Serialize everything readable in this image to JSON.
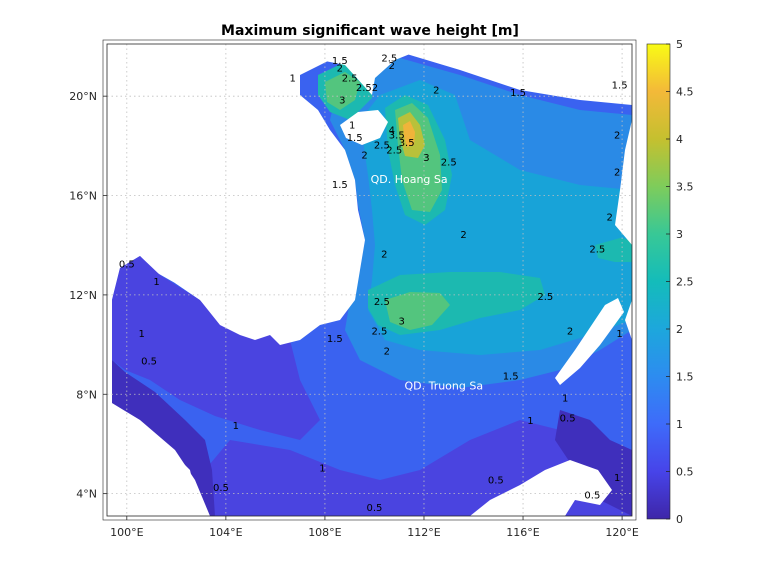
{
  "title": "Maximum significant wave height [m]",
  "map": {
    "x_ticks": [
      "100°E",
      "104°E",
      "108°E",
      "112°E",
      "116°E",
      "120°E"
    ],
    "y_ticks": [
      "20°N",
      "16°N",
      "12°N",
      "8°N",
      "4°N"
    ],
    "lon_range": [
      99.2,
      120.4
    ],
    "lat_range": [
      3.1,
      22.1
    ],
    "places": [
      {
        "name": "QD. Hoang Sa",
        "lon": 111.4,
        "lat": 16.5
      },
      {
        "name": "QD. Truong Sa",
        "lon": 112.8,
        "lat": 8.2
      }
    ],
    "contour_labels": [
      {
        "text": "1.5",
        "lon": 108.6,
        "lat": 21.3
      },
      {
        "text": "2",
        "lon": 108.6,
        "lat": 21.0
      },
      {
        "text": "2.5",
        "lon": 109.0,
        "lat": 20.6
      },
      {
        "text": "2.52",
        "lon": 109.7,
        "lat": 20.2
      },
      {
        "text": "3",
        "lon": 108.7,
        "lat": 19.7
      },
      {
        "text": "2.5",
        "lon": 110.6,
        "lat": 21.4
      },
      {
        "text": "2",
        "lon": 110.7,
        "lat": 21.1
      },
      {
        "text": "1",
        "lon": 106.7,
        "lat": 20.6
      },
      {
        "text": "2",
        "lon": 112.5,
        "lat": 20.1
      },
      {
        "text": "1.5",
        "lon": 115.8,
        "lat": 20.0
      },
      {
        "text": "1.5",
        "lon": 119.9,
        "lat": 20.3
      },
      {
        "text": "1",
        "lon": 109.1,
        "lat": 18.7
      },
      {
        "text": "1.5",
        "lon": 109.2,
        "lat": 18.2
      },
      {
        "text": "3.5",
        "lon": 110.9,
        "lat": 18.3
      },
      {
        "text": "4",
        "lon": 110.7,
        "lat": 18.5
      },
      {
        "text": "2.5",
        "lon": 110.3,
        "lat": 17.9
      },
      {
        "text": "2.5",
        "lon": 110.8,
        "lat": 17.7
      },
      {
        "text": "3.5",
        "lon": 111.3,
        "lat": 18.0
      },
      {
        "text": "3",
        "lon": 112.1,
        "lat": 17.4
      },
      {
        "text": "2.5",
        "lon": 113.0,
        "lat": 17.2
      },
      {
        "text": "2",
        "lon": 109.6,
        "lat": 17.5
      },
      {
        "text": "1.5",
        "lon": 108.6,
        "lat": 16.3
      },
      {
        "text": "2",
        "lon": 119.8,
        "lat": 18.3
      },
      {
        "text": "2",
        "lon": 119.8,
        "lat": 16.8
      },
      {
        "text": "2",
        "lon": 119.5,
        "lat": 15.0
      },
      {
        "text": "2",
        "lon": 113.6,
        "lat": 14.3
      },
      {
        "text": "2.5",
        "lon": 119.0,
        "lat": 13.7
      },
      {
        "text": "2",
        "lon": 110.4,
        "lat": 13.5
      },
      {
        "text": "2.5",
        "lon": 110.3,
        "lat": 11.6
      },
      {
        "text": "3",
        "lon": 111.1,
        "lat": 10.8
      },
      {
        "text": "2.5",
        "lon": 116.9,
        "lat": 11.8
      },
      {
        "text": "2.5",
        "lon": 110.2,
        "lat": 10.4
      },
      {
        "text": "1.5",
        "lon": 108.4,
        "lat": 10.1
      },
      {
        "text": "2",
        "lon": 110.5,
        "lat": 9.6
      },
      {
        "text": "2",
        "lon": 117.9,
        "lat": 10.4
      },
      {
        "text": "1.5",
        "lon": 115.5,
        "lat": 8.6
      },
      {
        "text": "1",
        "lon": 119.9,
        "lat": 10.3
      },
      {
        "text": "1",
        "lon": 117.7,
        "lat": 7.7
      },
      {
        "text": "0.5",
        "lon": 117.8,
        "lat": 6.9
      },
      {
        "text": "1",
        "lon": 116.3,
        "lat": 6.8
      },
      {
        "text": "1",
        "lon": 104.4,
        "lat": 6.6
      },
      {
        "text": "1",
        "lon": 107.9,
        "lat": 4.9
      },
      {
        "text": "0.5",
        "lon": 103.8,
        "lat": 4.1
      },
      {
        "text": "0.5",
        "lon": 114.9,
        "lat": 4.4
      },
      {
        "text": "0.5",
        "lon": 118.8,
        "lat": 3.8
      },
      {
        "text": "1",
        "lon": 119.8,
        "lat": 4.5
      },
      {
        "text": "0.5",
        "lon": 100.0,
        "lat": 13.1
      },
      {
        "text": "1",
        "lon": 101.2,
        "lat": 12.4
      },
      {
        "text": "1",
        "lon": 100.6,
        "lat": 10.3
      },
      {
        "text": "0.5",
        "lon": 100.9,
        "lat": 9.2
      },
      {
        "text": "0.5",
        "lon": 110.0,
        "lat": 3.3
      }
    ]
  },
  "colorbar": {
    "ticks": [
      "0",
      "0.5",
      "1",
      "1.5",
      "2",
      "2.5",
      "3",
      "3.5",
      "4",
      "4.5",
      "5"
    ],
    "range": [
      0,
      5
    ],
    "colormap": "parula",
    "stops": [
      "#3e26a8",
      "#4744e9",
      "#3e6bfa",
      "#2d8cf0",
      "#1da7dc",
      "#14bcba",
      "#38c896",
      "#7ecc5b",
      "#c5c02f",
      "#f3b939",
      "#f9fb15"
    ]
  }
}
